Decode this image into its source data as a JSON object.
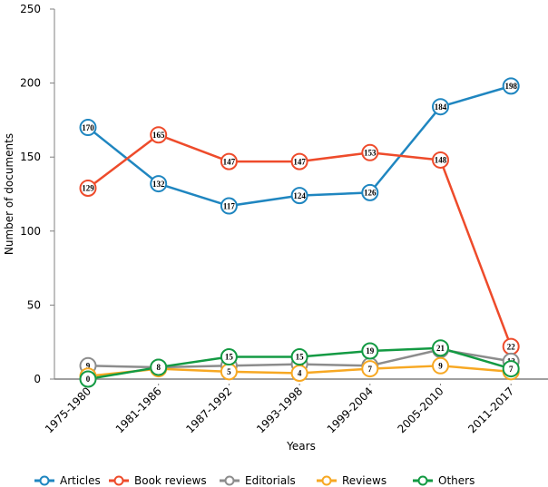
{
  "chart_data": {
    "type": "line",
    "title": "",
    "xlabel": "Years",
    "ylabel": "Number of documents",
    "ylim": [
      0,
      250
    ],
    "yticks": [
      0,
      50,
      100,
      150,
      200,
      250
    ],
    "grid": false,
    "legend_position": "bottom",
    "categories": [
      "1975-1980",
      "1981-1986",
      "1987-1992",
      "1993-1998",
      "1999-2004",
      "2005-2010",
      "2011-2017"
    ],
    "series": [
      {
        "name": "Articles",
        "color": "#1f86c0",
        "values": [
          170,
          132,
          117,
          124,
          126,
          184,
          198
        ]
      },
      {
        "name": "Book reviews",
        "color": "#ee4b2b",
        "values": [
          129,
          165,
          147,
          147,
          153,
          148,
          22
        ]
      },
      {
        "name": "Editorials",
        "color": "#8c8c8c",
        "values": [
          9,
          8,
          9,
          10,
          9,
          20,
          12
        ]
      },
      {
        "name": "Reviews",
        "color": "#f7a823",
        "values": [
          2,
          7,
          5,
          4,
          7,
          9,
          5
        ]
      },
      {
        "name": "Others",
        "color": "#139a43",
        "values": [
          0,
          8,
          15,
          15,
          19,
          21,
          7
        ]
      }
    ]
  }
}
